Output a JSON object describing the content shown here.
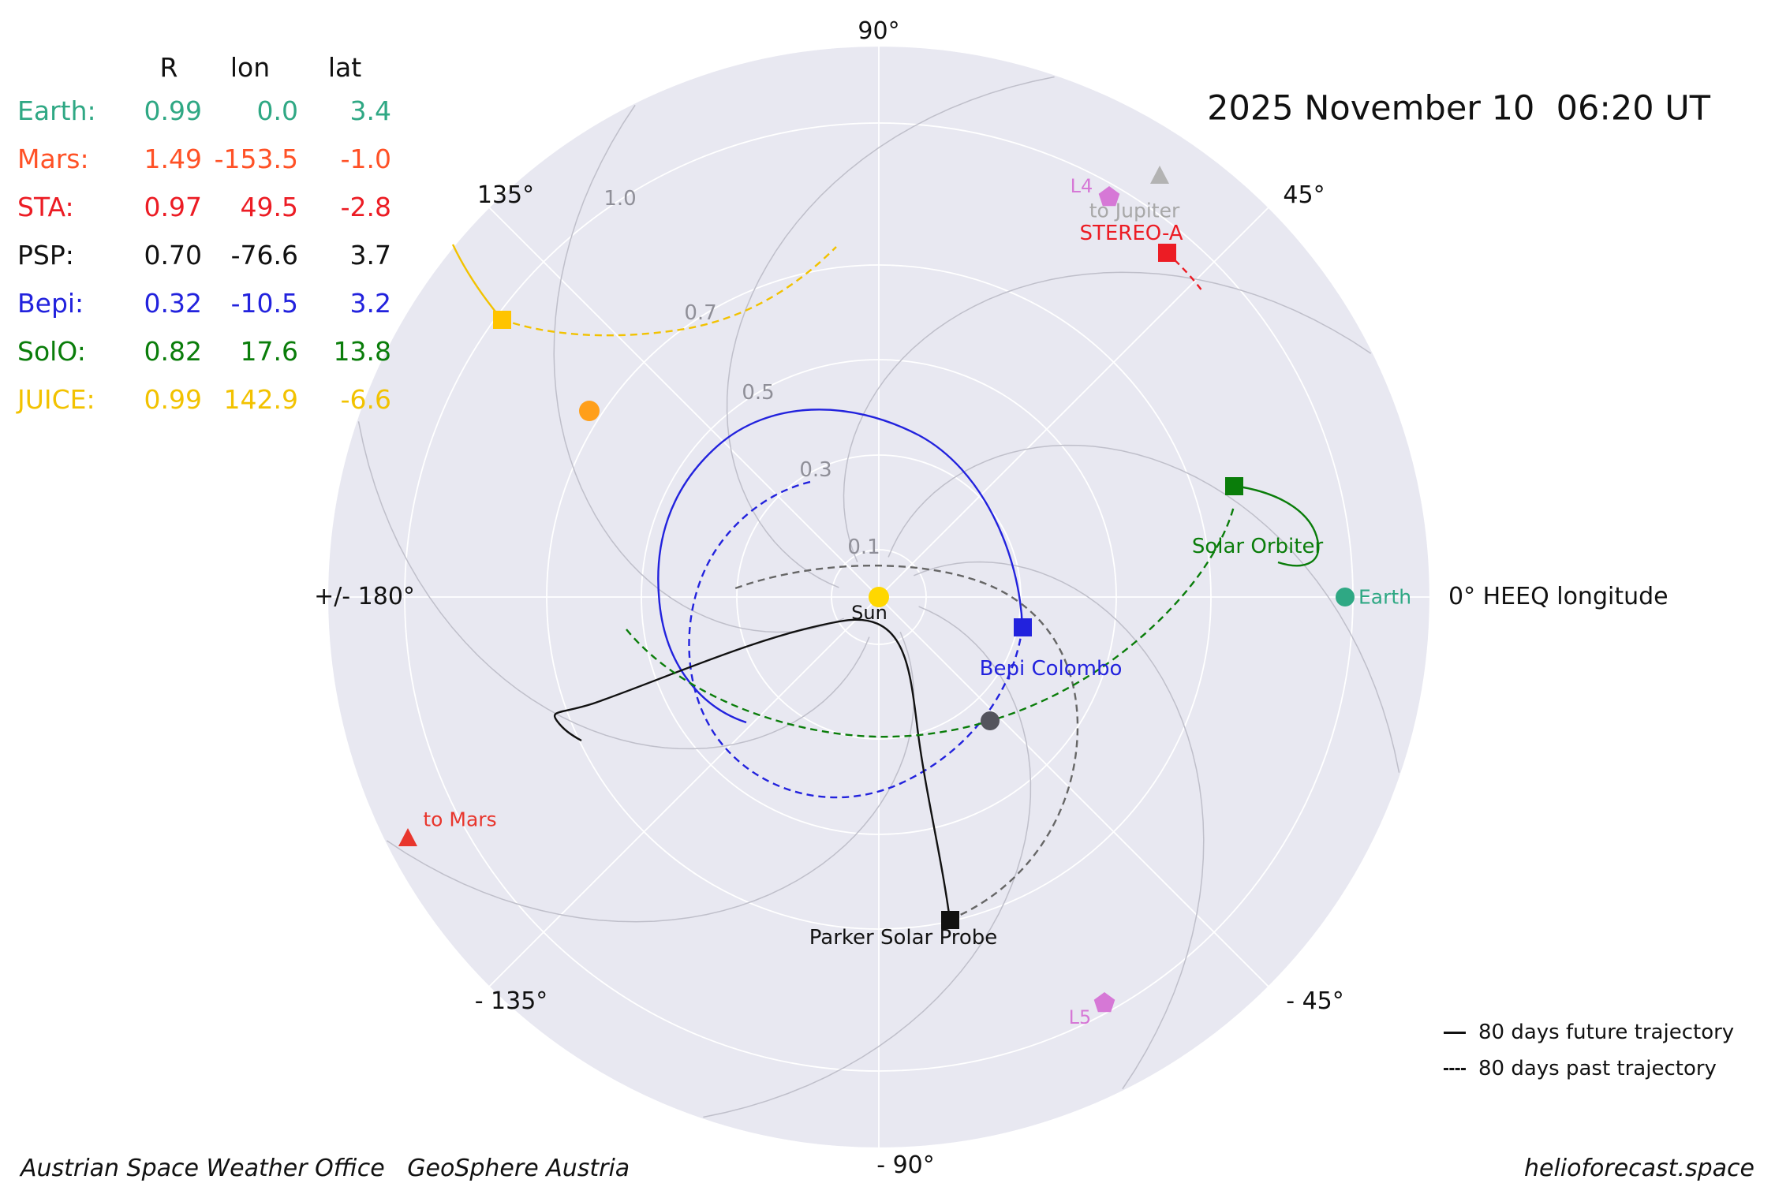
{
  "header": {
    "datetime": "2025 November 10  06:20 UT"
  },
  "position_table": {
    "headers": {
      "r": "R",
      "lon": "lon",
      "lat": "lat"
    },
    "rows": [
      {
        "label": "Earth:",
        "r": "0.99",
        "lon": "0.0",
        "lat": "3.4",
        "color": "#2fa884"
      },
      {
        "label": "Mars:",
        "r": "1.49",
        "lon": "-153.5",
        "lat": "-1.0",
        "color": "#ff5126"
      },
      {
        "label": "STA:",
        "r": "0.97",
        "lon": "49.5",
        "lat": "-2.8",
        "color": "#ec1c24"
      },
      {
        "label": "PSP:",
        "r": "0.70",
        "lon": "-76.6",
        "lat": "3.7",
        "color": "#111111"
      },
      {
        "label": "Bepi:",
        "r": "0.32",
        "lon": "-10.5",
        "lat": "3.2",
        "color": "#2222dd"
      },
      {
        "label": "SolO:",
        "r": "0.82",
        "lon": "17.6",
        "lat": "13.8",
        "color": "#0a7d0a"
      },
      {
        "label": "JUICE:",
        "r": "0.99",
        "lon": "142.9",
        "lat": "-6.6",
        "color": "#f2c200"
      }
    ]
  },
  "polar": {
    "angles": {
      "top": "90°",
      "top_right": "45°",
      "right": "0° HEEQ longitude",
      "bottom_right": "- 45°",
      "bottom": "- 90°",
      "bottom_left": "- 135°",
      "left": "+/- 180°",
      "top_left": "135°"
    },
    "radial_ticks": {
      "r10": "1.0",
      "r07": "0.7",
      "r05": "0.5",
      "r03": "0.3",
      "r01": "0.1"
    }
  },
  "markers": {
    "sun": {
      "label": "Sun",
      "color": "#ffd700"
    },
    "earth": {
      "label": "Earth",
      "color": "#2fa884"
    },
    "bepi": {
      "label": "Bepi Colombo",
      "color": "#2222dd"
    },
    "solo": {
      "label": "Solar Orbiter",
      "color": "#0a7d0a"
    },
    "psp": {
      "label": "Parker Solar Probe",
      "color": "#111111"
    },
    "stereo_a": {
      "label": "STEREO-A",
      "color": "#ec1c24"
    },
    "l4": {
      "label": "L4",
      "color": "#d678d6"
    },
    "l5": {
      "label": "L5",
      "color": "#d678d6"
    },
    "to_jupiter": {
      "label": "to Jupiter",
      "color": "#a8a8a8"
    },
    "to_mars": {
      "label": "to Mars",
      "color": "#e8362d"
    },
    "venus_dot": {
      "color": "#ff9f1a"
    },
    "mercury_dot": {
      "color": "#54545c"
    }
  },
  "legend": {
    "future": "80 days future trajectory",
    "past": "80 days past trajectory"
  },
  "footer": {
    "left": "Austrian Space Weather Office   GeoSphere Austria",
    "right": "helioforecast.space"
  },
  "chart_data": {
    "type": "scatter",
    "projection": "polar",
    "title": "2025 November 10  06:20 UT",
    "angle_unit": "HEEQ longitude, degrees, 0° at Earth, 90° up",
    "r_unit": "AU",
    "r_ticks": [
      0.1,
      0.3,
      0.5,
      0.7,
      1.0
    ],
    "r_max_displayed": 1.16,
    "grid": true,
    "series": [
      {
        "name": "Sun",
        "R": 0.0,
        "lon": 0.0,
        "lat": null,
        "marker": "circle",
        "color": "#ffd700"
      },
      {
        "name": "Earth",
        "R": 0.99,
        "lon": 0.0,
        "lat": 3.4,
        "marker": "circle",
        "color": "#2fa884"
      },
      {
        "name": "Mars (off-plot, direction arrow)",
        "R": 1.49,
        "lon": -153.5,
        "lat": -1.0,
        "marker": "triangle",
        "color": "#e8362d"
      },
      {
        "name": "STEREO-A (STA)",
        "R": 0.97,
        "lon": 49.5,
        "lat": -2.8,
        "marker": "square",
        "color": "#ec1c24"
      },
      {
        "name": "Parker Solar Probe (PSP)",
        "R": 0.7,
        "lon": -76.6,
        "lat": 3.7,
        "marker": "square",
        "color": "#111111"
      },
      {
        "name": "Bepi Colombo (Bepi)",
        "R": 0.32,
        "lon": -10.5,
        "lat": 3.2,
        "marker": "square",
        "color": "#2222dd"
      },
      {
        "name": "Solar Orbiter (SolO)",
        "R": 0.82,
        "lon": 17.6,
        "lat": 13.8,
        "marker": "square",
        "color": "#0a7d0a"
      },
      {
        "name": "JUICE",
        "R": 0.99,
        "lon": 142.9,
        "lat": -6.6,
        "marker": "square",
        "color": "#f2c200"
      },
      {
        "name": "L4",
        "R": 0.99,
        "lon": 60,
        "lat": null,
        "marker": "pentagon",
        "color": "#d678d6"
      },
      {
        "name": "L5",
        "R": 0.99,
        "lon": -60,
        "lat": null,
        "marker": "pentagon",
        "color": "#d678d6"
      },
      {
        "name": "unlabeled orange dot",
        "R": 0.73,
        "lon": 147,
        "lat": null,
        "marker": "circle",
        "color": "#ff9f1a"
      },
      {
        "name": "unlabeled gray dot",
        "R": 0.35,
        "lon": -48,
        "lat": null,
        "marker": "circle",
        "color": "#54545c"
      },
      {
        "name": "to Jupiter direction",
        "R": 1.07,
        "lon": 56,
        "lat": null,
        "marker": "triangle",
        "color": "#b3b3b3"
      }
    ],
    "trajectories": [
      {
        "name": "Bepi future 80 days",
        "style": "solid",
        "color": "#2222dd"
      },
      {
        "name": "Bepi past 80 days",
        "style": "dashed",
        "color": "#2222dd"
      },
      {
        "name": "PSP future 80 days",
        "style": "solid",
        "color": "#111111"
      },
      {
        "name": "PSP past 80 days",
        "style": "dashed",
        "color": "#666666"
      },
      {
        "name": "SolO future 80 days",
        "style": "solid",
        "color": "#0a7d0a"
      },
      {
        "name": "SolO past 80 days",
        "style": "dashed",
        "color": "#0a7d0a"
      },
      {
        "name": "JUICE future 80 days",
        "style": "solid",
        "color": "#f2c200"
      },
      {
        "name": "JUICE past 80 days",
        "style": "dashed",
        "color": "#f2c200"
      },
      {
        "name": "STEREO-A past",
        "style": "dashed",
        "color": "#ec1c24"
      }
    ],
    "legend": [
      "80 days future trajectory (solid)",
      "80 days past trajectory (dashed)"
    ],
    "legend_position": "lower right"
  }
}
